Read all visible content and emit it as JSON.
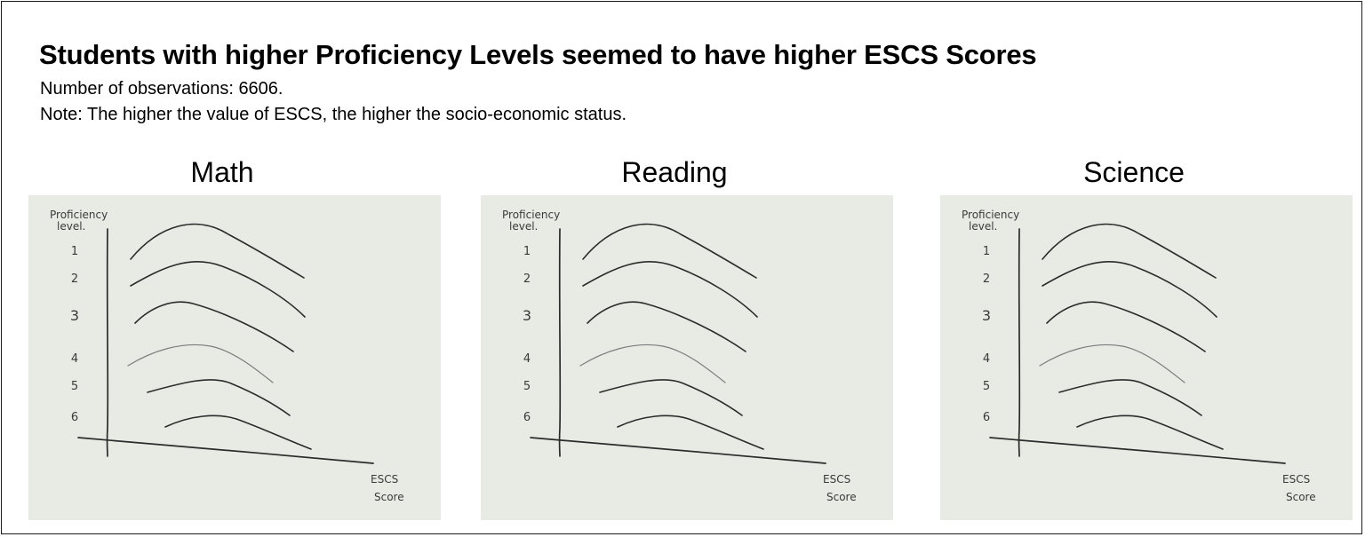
{
  "title": "Students with higher Proficiency Levels seemed to have higher ESCS Scores",
  "subtitle_lines": [
    "Number of observations: 6606.",
    "Note: The higher the value of ESCS, the higher the socio-economic status."
  ],
  "colors": {
    "ink": "#2b2b2b",
    "faint_ink": "#7d7d7d",
    "paper": "#e8ebe4",
    "frame": "#1a1a1a"
  },
  "chart_data": [
    {
      "type": "line",
      "title": "Math",
      "ylabel": "Proficiency level.",
      "xlabel": "ESCS Score",
      "categories": [
        "1",
        "2",
        "3",
        "4",
        "5",
        "6"
      ],
      "series": [
        {
          "name": "1",
          "x": [
            0.0,
            0.35,
            1.0
          ],
          "y": [
            0.98,
            1.0,
            0.84
          ]
        },
        {
          "name": "2",
          "x": [
            0.0,
            0.35,
            1.0
          ],
          "y": [
            0.98,
            1.0,
            0.84
          ]
        },
        {
          "name": "3",
          "x": [
            0.0,
            0.35,
            1.0
          ],
          "y": [
            0.98,
            1.0,
            0.84
          ]
        },
        {
          "name": "4",
          "x": [
            0.0,
            0.35,
            1.0
          ],
          "y": [
            0.98,
            1.0,
            0.84
          ]
        },
        {
          "name": "5",
          "x": [
            0.0,
            0.35,
            1.0
          ],
          "y": [
            0.98,
            1.0,
            0.84
          ]
        },
        {
          "name": "6",
          "x": [
            0.0,
            0.35,
            1.0
          ],
          "y": [
            0.98,
            1.0,
            0.84
          ]
        }
      ]
    },
    {
      "type": "line",
      "title": "Reading",
      "ylabel": "Proficiency level.",
      "xlabel": "ESCS Score",
      "categories": [
        "1",
        "2",
        "3",
        "4",
        "5",
        "6"
      ],
      "series": []
    },
    {
      "type": "line",
      "title": "Science",
      "ylabel": "Proficiency level.",
      "xlabel": "ESCS Score",
      "categories": [
        "1",
        "2",
        "3",
        "4",
        "5",
        "6"
      ],
      "series": []
    }
  ]
}
